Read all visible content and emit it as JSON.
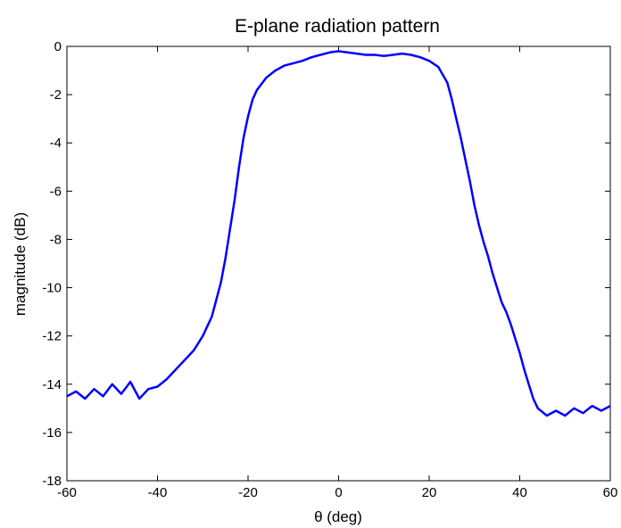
{
  "chart_data": {
    "type": "line",
    "title": "E-plane radiation pattern",
    "xlabel": "θ (deg)",
    "ylabel": "magnitude (dB)",
    "xlim": [
      -60,
      60
    ],
    "ylim": [
      -18,
      0
    ],
    "xticks": [
      -60,
      -40,
      -20,
      0,
      20,
      40,
      60
    ],
    "yticks": [
      0,
      -2,
      -4,
      -6,
      -8,
      -10,
      -12,
      -14,
      -16,
      -18
    ],
    "grid": false,
    "legend": "none",
    "line_color": "#0000ff",
    "series": [
      {
        "x": [
          -60,
          -58,
          -56,
          -54,
          -52,
          -50,
          -48,
          -46,
          -44,
          -42,
          -40,
          -38,
          -36,
          -34,
          -32,
          -30,
          -28,
          -26,
          -25,
          -24,
          -23,
          -22,
          -21,
          -20,
          -19,
          -18,
          -16,
          -14,
          -12,
          -10,
          -8,
          -6,
          -4,
          -2,
          0,
          2,
          4,
          6,
          8,
          10,
          12,
          14,
          16,
          18,
          20,
          22,
          24,
          25,
          26,
          27,
          28,
          29,
          30,
          31,
          32,
          33,
          34,
          35,
          36,
          37,
          38,
          39,
          40,
          41,
          42,
          43,
          44,
          46,
          48,
          50,
          52,
          54,
          56,
          58,
          60
        ],
        "y": [
          -14.5,
          -14.3,
          -14.6,
          -14.2,
          -14.5,
          -14.0,
          -14.4,
          -13.9,
          -14.6,
          -14.2,
          -14.1,
          -13.8,
          -13.4,
          -13.0,
          -12.6,
          -12.0,
          -11.2,
          -9.8,
          -8.8,
          -7.6,
          -6.4,
          -5.0,
          -3.8,
          -2.9,
          -2.2,
          -1.8,
          -1.3,
          -1.0,
          -0.8,
          -0.7,
          -0.6,
          -0.45,
          -0.35,
          -0.25,
          -0.2,
          -0.25,
          -0.3,
          -0.35,
          -0.35,
          -0.4,
          -0.35,
          -0.3,
          -0.35,
          -0.45,
          -0.6,
          -0.85,
          -1.5,
          -2.2,
          -3.0,
          -3.8,
          -4.7,
          -5.6,
          -6.6,
          -7.4,
          -8.1,
          -8.7,
          -9.4,
          -10.0,
          -10.6,
          -11.0,
          -11.5,
          -12.1,
          -12.7,
          -13.4,
          -14.0,
          -14.6,
          -15.0,
          -15.3,
          -15.1,
          -15.3,
          -15.0,
          -15.2,
          -14.9,
          -15.1,
          -14.9
        ]
      }
    ]
  }
}
